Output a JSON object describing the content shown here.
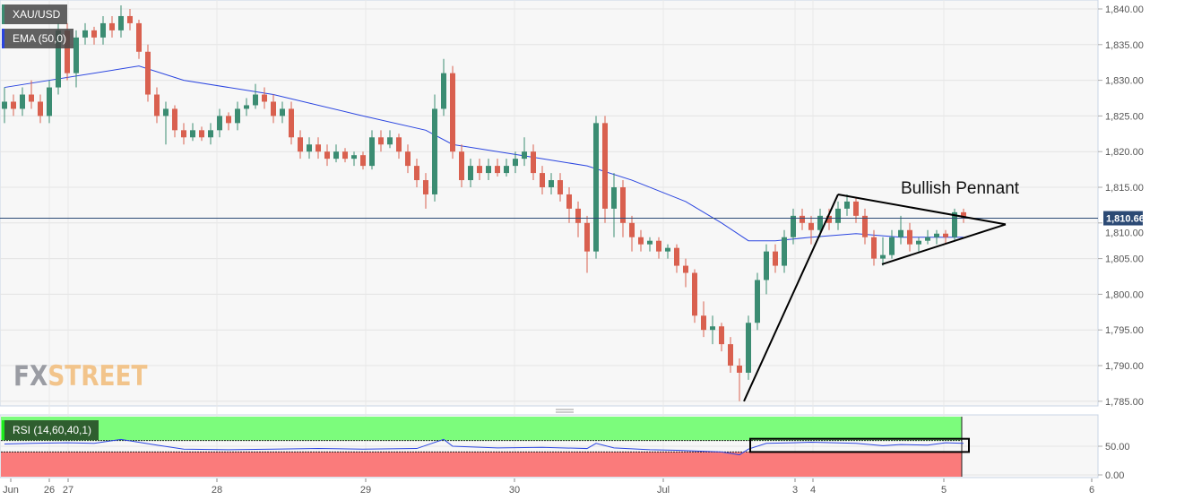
{
  "symbol": "XAU/USD",
  "indicator_label": "EMA (50,0)",
  "rsi_label": "RSI (14,60,40,1)",
  "watermark": {
    "part1": "FX",
    "part2": "STREET"
  },
  "annotation": "Bullish Pennant",
  "last_price_label": "1,810.66",
  "colors": {
    "up": "#3b8c72",
    "down": "#d9604f",
    "ema": "#2a45e0",
    "rsi_line": "#2a45e0",
    "overbought_zone": "#7cfc7c",
    "oversold_zone": "#fa7b7b",
    "last_price": "#2c4a75",
    "pennant": "#000000"
  },
  "chart_data": [
    {
      "type": "candlestick",
      "title": "XAU/USD",
      "ylim": [
        1783,
        1841.5
      ],
      "y_ticks": [
        "1,840.00",
        "1,835.00",
        "1,830.00",
        "1,825.00",
        "1,820.00",
        "1,815.00",
        "1,810.00",
        "1,805.00",
        "1,800.00",
        "1,795.00",
        "1,790.00",
        "1,785.00"
      ],
      "y_tick_values": [
        1840,
        1835,
        1830,
        1825,
        1820,
        1815,
        1810,
        1805,
        1800,
        1795,
        1790,
        1785
      ],
      "x_ticks": [
        {
          "label": "Jun",
          "index": 0.7
        },
        {
          "label": "26",
          "index": 5
        },
        {
          "label": "27",
          "index": 7.1
        },
        {
          "label": "28",
          "index": 23.7
        },
        {
          "label": "29",
          "index": 40.3
        },
        {
          "label": "30",
          "index": 56.9
        },
        {
          "label": "Jul",
          "index": 73.5
        },
        {
          "label": "3",
          "index": 88.2
        },
        {
          "label": "4",
          "index": 90.2
        },
        {
          "label": "5",
          "index": 104.8
        },
        {
          "label": "6",
          "index": 121.3
        }
      ],
      "last_price": 1810.66,
      "grid": true,
      "candles_ohlc": [
        [
          1826,
          1829,
          1824,
          1827
        ],
        [
          1827,
          1828,
          1825,
          1826
        ],
        [
          1826,
          1829,
          1825,
          1828
        ],
        [
          1828,
          1830,
          1826,
          1827
        ],
        [
          1827,
          1828,
          1824,
          1825
        ],
        [
          1825,
          1830,
          1824,
          1829
        ],
        [
          1829,
          1838,
          1828,
          1837
        ],
        [
          1837,
          1838,
          1830,
          1831
        ],
        [
          1831,
          1837,
          1829,
          1836
        ],
        [
          1836,
          1838,
          1835,
          1837
        ],
        [
          1837,
          1837.5,
          1835,
          1836
        ],
        [
          1836,
          1839,
          1835,
          1838
        ],
        [
          1838,
          1839,
          1836,
          1837
        ],
        [
          1837,
          1840.5,
          1836,
          1839
        ],
        [
          1839,
          1840,
          1837,
          1838
        ],
        [
          1838,
          1838.5,
          1833,
          1834
        ],
        [
          1834,
          1835,
          1827,
          1828
        ],
        [
          1828,
          1829,
          1824,
          1825
        ],
        [
          1825,
          1827,
          1821,
          1826
        ],
        [
          1826,
          1826.5,
          1822,
          1823
        ],
        [
          1823,
          1824,
          1821,
          1822
        ],
        [
          1822,
          1824,
          1821.5,
          1823
        ],
        [
          1823,
          1823.5,
          1821.5,
          1822
        ],
        [
          1822,
          1824,
          1821,
          1823
        ],
        [
          1823,
          1826,
          1822,
          1825
        ],
        [
          1825,
          1825.5,
          1823,
          1824
        ],
        [
          1824,
          1827,
          1823,
          1826
        ],
        [
          1826,
          1827.5,
          1825,
          1826.5
        ],
        [
          1826.5,
          1829.5,
          1826,
          1828
        ],
        [
          1828,
          1829,
          1826,
          1827
        ],
        [
          1827,
          1828,
          1824,
          1825
        ],
        [
          1825,
          1827,
          1824,
          1826
        ],
        [
          1826,
          1827,
          1821,
          1822
        ],
        [
          1822,
          1823,
          1819,
          1820
        ],
        [
          1820,
          1822,
          1819,
          1821
        ],
        [
          1821,
          1822,
          1819,
          1820
        ],
        [
          1820,
          1821,
          1818,
          1819
        ],
        [
          1819,
          1821,
          1818.5,
          1820
        ],
        [
          1820,
          1820.5,
          1818.5,
          1819
        ],
        [
          1819,
          1820,
          1818,
          1819.5
        ],
        [
          1819.5,
          1820,
          1817.5,
          1818
        ],
        [
          1818,
          1823,
          1817.5,
          1822
        ],
        [
          1822,
          1823,
          1820,
          1821
        ],
        [
          1821,
          1823,
          1820.5,
          1822
        ],
        [
          1822,
          1822.5,
          1819,
          1820
        ],
        [
          1820,
          1821,
          1817,
          1818
        ],
        [
          1818,
          1819,
          1815,
          1816
        ],
        [
          1816,
          1817,
          1812,
          1814
        ],
        [
          1814,
          1828,
          1813,
          1826
        ],
        [
          1826,
          1833,
          1825,
          1831
        ],
        [
          1831,
          1832,
          1819,
          1820
        ],
        [
          1820,
          1821,
          1815,
          1816
        ],
        [
          1816,
          1819,
          1815,
          1818
        ],
        [
          1818,
          1819,
          1816,
          1817
        ],
        [
          1817,
          1819,
          1816,
          1818
        ],
        [
          1818,
          1819,
          1816.5,
          1817
        ],
        [
          1817,
          1819,
          1816.5,
          1818
        ],
        [
          1818,
          1820,
          1817,
          1819
        ],
        [
          1819,
          1822,
          1818,
          1820
        ],
        [
          1820,
          1821,
          1816,
          1817
        ],
        [
          1817,
          1818,
          1814,
          1815
        ],
        [
          1815,
          1817,
          1814,
          1816
        ],
        [
          1816,
          1817,
          1813,
          1814
        ],
        [
          1814,
          1815,
          1810,
          1812
        ],
        [
          1812,
          1813,
          1808,
          1810
        ],
        [
          1810,
          1811,
          1803,
          1806
        ],
        [
          1806,
          1825,
          1805,
          1824
        ],
        [
          1824,
          1825,
          1810,
          1812
        ],
        [
          1812,
          1817,
          1808,
          1815
        ],
        [
          1815,
          1816,
          1808,
          1810
        ],
        [
          1810,
          1811,
          1806,
          1808
        ],
        [
          1808,
          1809,
          1806,
          1807
        ],
        [
          1807,
          1808,
          1806,
          1807.5
        ],
        [
          1807.5,
          1808,
          1805,
          1806
        ],
        [
          1806,
          1807,
          1805,
          1806.5
        ],
        [
          1806.5,
          1807,
          1803,
          1804
        ],
        [
          1804,
          1805,
          1801,
          1803
        ],
        [
          1803,
          1803.5,
          1796,
          1797
        ],
        [
          1797,
          1799,
          1794,
          1795
        ],
        [
          1795,
          1797,
          1793,
          1795.5
        ],
        [
          1795.5,
          1796,
          1792,
          1793
        ],
        [
          1793,
          1794,
          1789,
          1790
        ],
        [
          1790,
          1791,
          1785,
          1789
        ],
        [
          1789,
          1797,
          1788,
          1796
        ],
        [
          1796,
          1803,
          1795,
          1802
        ],
        [
          1802,
          1807,
          1800,
          1806
        ],
        [
          1806,
          1807,
          1803,
          1804
        ],
        [
          1804,
          1809,
          1803,
          1808
        ],
        [
          1808,
          1812,
          1807,
          1811
        ],
        [
          1811,
          1812,
          1809,
          1810
        ],
        [
          1810,
          1811,
          1807,
          1809
        ],
        [
          1809,
          1812,
          1808,
          1811
        ],
        [
          1811,
          1812,
          1809,
          1810
        ],
        [
          1810,
          1813,
          1809,
          1812
        ],
        [
          1812,
          1814,
          1811,
          1813
        ],
        [
          1813,
          1813.5,
          1810,
          1811
        ],
        [
          1811,
          1812,
          1807,
          1808
        ],
        [
          1808,
          1809,
          1804,
          1805
        ],
        [
          1805,
          1808,
          1804,
          1805.5
        ],
        [
          1805.5,
          1809,
          1805,
          1808
        ],
        [
          1808,
          1811,
          1807,
          1809
        ],
        [
          1809,
          1810,
          1806,
          1807
        ],
        [
          1807,
          1808,
          1806,
          1807.5
        ],
        [
          1807.5,
          1809,
          1807,
          1808
        ],
        [
          1808,
          1809,
          1807,
          1808.5
        ],
        [
          1808.5,
          1809,
          1807,
          1808
        ],
        [
          1808,
          1812,
          1807.5,
          1811.5
        ],
        [
          1811.5,
          1812,
          1810,
          1810.66
        ]
      ],
      "ema_series": {
        "name": "EMA (50,0)",
        "points": [
          [
            0,
            1829
          ],
          [
            15,
            1832
          ],
          [
            20,
            1830
          ],
          [
            30,
            1828
          ],
          [
            40,
            1825
          ],
          [
            47,
            1823
          ],
          [
            50,
            1821
          ],
          [
            60,
            1819
          ],
          [
            65,
            1818
          ],
          [
            70,
            1816
          ],
          [
            76,
            1813
          ],
          [
            80,
            1810
          ],
          [
            83,
            1807.5
          ],
          [
            86,
            1807.5
          ],
          [
            90,
            1808
          ],
          [
            95,
            1808.5
          ],
          [
            100,
            1808
          ],
          [
            107,
            1808
          ]
        ]
      },
      "pennant": {
        "pole": [
          [
            82.5,
            1785
          ],
          [
            93,
            1814
          ]
        ],
        "upper": [
          [
            93,
            1814
          ],
          [
            111.7,
            1809.8
          ]
        ],
        "lower": [
          [
            97.9,
            1804.2
          ],
          [
            111.7,
            1809.8
          ]
        ]
      }
    },
    {
      "type": "line",
      "title": "RSI (14,60,40,1)",
      "ylim": [
        0,
        100
      ],
      "y_ticks": [
        "50.00",
        "0.00"
      ],
      "y_tick_values": [
        50,
        0
      ],
      "levels": {
        "upper": 60,
        "lower": 40
      },
      "series": [
        {
          "name": "RSI (14,60,40,1)",
          "points": [
            [
              0,
              54
            ],
            [
              3,
              55
            ],
            [
              7,
              56
            ],
            [
              10,
              55
            ],
            [
              13,
              62
            ],
            [
              17,
              52
            ],
            [
              20,
              45
            ],
            [
              25,
              44
            ],
            [
              30,
              45
            ],
            [
              35,
              46
            ],
            [
              40,
              45
            ],
            [
              46,
              46
            ],
            [
              49,
              62
            ],
            [
              50,
              50
            ],
            [
              55,
              47
            ],
            [
              60,
              48
            ],
            [
              65,
              46
            ],
            [
              66,
              55
            ],
            [
              68,
              47
            ],
            [
              72,
              44
            ],
            [
              75,
              43
            ],
            [
              80,
              40
            ],
            [
              82,
              35
            ],
            [
              83,
              45
            ],
            [
              85,
              55
            ],
            [
              88,
              56
            ],
            [
              90,
              57
            ],
            [
              95,
              55
            ],
            [
              98,
              51
            ],
            [
              100,
              53
            ],
            [
              103,
              52
            ],
            [
              105,
              56
            ],
            [
              107,
              55
            ]
          ]
        }
      ],
      "highlight_box": {
        "from_index": 83.2,
        "to_index": 107.6,
        "from_value": 63,
        "to_value": 40
      }
    }
  ]
}
